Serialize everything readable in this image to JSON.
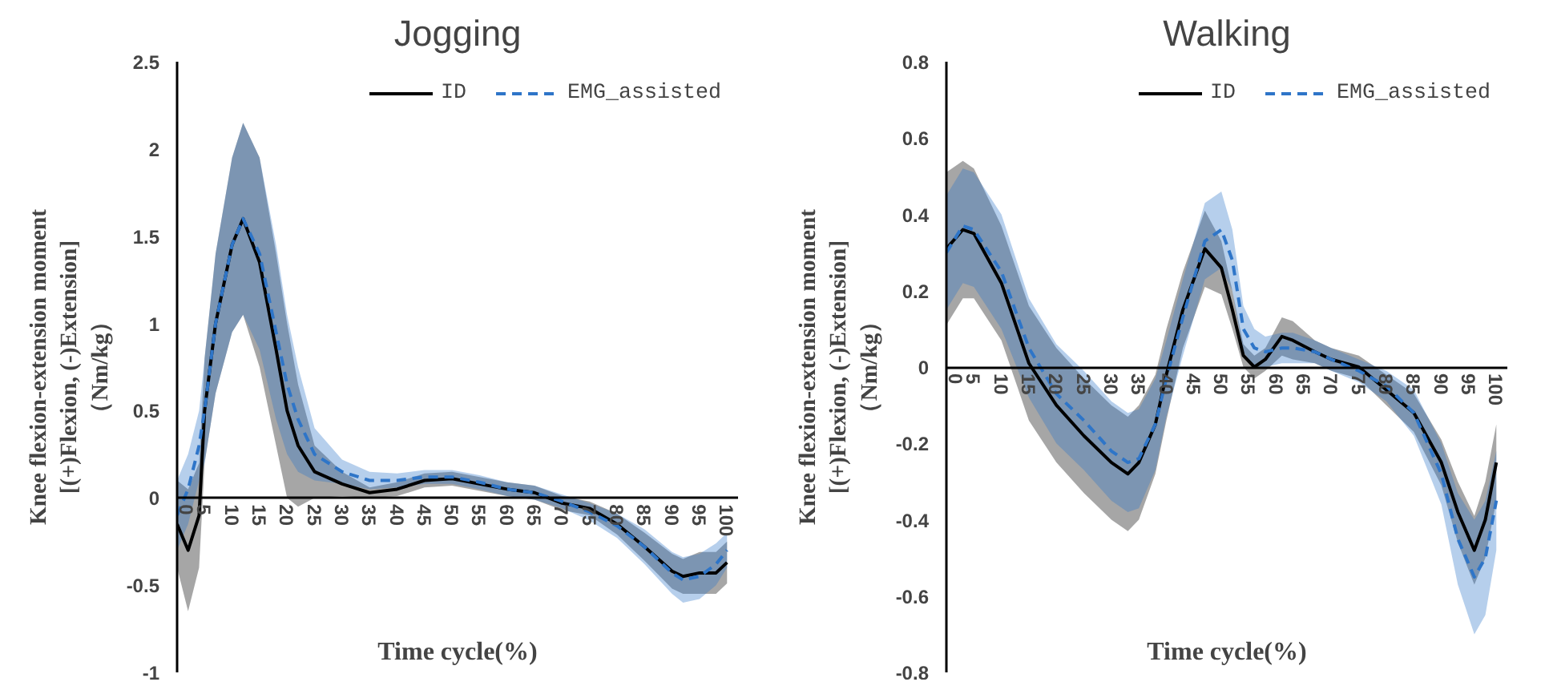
{
  "chart_data": [
    {
      "type": "line",
      "title": "Jogging",
      "xlabel": "Time cycle(%)",
      "ylabel": "Knee flexion-extension moment\n[(+)Flexion, (-)Extension]\n（Nm/kg）",
      "x": [
        0,
        2,
        4,
        5,
        7,
        10,
        12,
        15,
        18,
        20,
        22,
        25,
        30,
        35,
        40,
        45,
        50,
        55,
        60,
        65,
        70,
        75,
        80,
        85,
        90,
        92,
        95,
        98,
        100
      ],
      "series": [
        {
          "name": "ID",
          "color": "#000000",
          "line_style": "solid",
          "values": [
            -0.15,
            -0.3,
            -0.1,
            0.5,
            1.0,
            1.45,
            1.6,
            1.35,
            0.85,
            0.5,
            0.3,
            0.15,
            0.08,
            0.03,
            0.05,
            0.1,
            0.11,
            0.08,
            0.05,
            0.03,
            -0.03,
            -0.06,
            -0.15,
            -0.28,
            -0.42,
            -0.45,
            -0.43,
            -0.43,
            -0.37
          ],
          "lower": [
            -0.4,
            -0.65,
            -0.4,
            0.2,
            0.6,
            0.95,
            1.05,
            0.75,
            0.3,
            0,
            -0.05,
            0,
            0.01,
            0,
            0.01,
            0.06,
            0.07,
            0.04,
            0.01,
            -0.01,
            -0.07,
            -0.1,
            -0.21,
            -0.36,
            -0.52,
            -0.55,
            -0.55,
            -0.55,
            -0.49
          ],
          "upper": [
            0.1,
            0.05,
            0.2,
            0.8,
            1.4,
            1.95,
            2.15,
            1.95,
            1.4,
            1.0,
            0.65,
            0.3,
            0.15,
            0.06,
            0.09,
            0.14,
            0.15,
            0.12,
            0.09,
            0.07,
            0.01,
            -0.02,
            -0.09,
            -0.2,
            -0.32,
            -0.35,
            -0.31,
            -0.31,
            -0.25
          ]
        },
        {
          "name": "EMG_assisted",
          "color": "#2e75c8",
          "line_style": "dashed",
          "values": [
            -0.1,
            0.05,
            0.3,
            0.5,
            1.0,
            1.45,
            1.6,
            1.4,
            0.95,
            0.65,
            0.45,
            0.25,
            0.15,
            0.1,
            0.1,
            0.12,
            0.12,
            0.09,
            0.05,
            0.03,
            -0.02,
            -0.08,
            -0.16,
            -0.28,
            -0.43,
            -0.47,
            -0.45,
            -0.38,
            -0.3
          ],
          "lower": [
            -0.3,
            -0.15,
            0.1,
            0.2,
            0.6,
            0.95,
            1.05,
            0.85,
            0.45,
            0.25,
            0.15,
            0.1,
            0.08,
            0.05,
            0.06,
            0.08,
            0.08,
            0.05,
            0.01,
            -0.01,
            -0.06,
            -0.13,
            -0.23,
            -0.38,
            -0.55,
            -0.6,
            -0.58,
            -0.5,
            -0.4
          ],
          "upper": [
            0.1,
            0.25,
            0.5,
            0.8,
            1.4,
            1.95,
            2.15,
            1.95,
            1.45,
            1.05,
            0.75,
            0.4,
            0.22,
            0.15,
            0.14,
            0.16,
            0.16,
            0.13,
            0.09,
            0.07,
            0.02,
            -0.03,
            -0.09,
            -0.18,
            -0.31,
            -0.34,
            -0.32,
            -0.26,
            -0.2
          ]
        }
      ],
      "xlim": [
        0,
        102
      ],
      "xticks": [
        0,
        5,
        10,
        15,
        20,
        25,
        30,
        35,
        40,
        45,
        50,
        55,
        60,
        65,
        70,
        75,
        80,
        85,
        90,
        95,
        100
      ],
      "ylim": [
        -1,
        2.5
      ],
      "yticks": [
        -1,
        -0.5,
        0,
        0.5,
        1,
        1.5,
        2,
        2.5
      ],
      "grid": false,
      "legend": "top right",
      "marker": "none"
    },
    {
      "type": "line",
      "title": "Walking",
      "xlabel": "Time cycle(%)",
      "ylabel": "Knee flexion-extension moment\n[(+)Flexion, (-)Extension]\n（Nm/kg）",
      "x": [
        0,
        3,
        5,
        10,
        15,
        20,
        25,
        30,
        33,
        35,
        38,
        40,
        43,
        47,
        50,
        52,
        54,
        56,
        58,
        61,
        63,
        67,
        70,
        75,
        80,
        85,
        90,
        93,
        96,
        98,
        100
      ],
      "series": [
        {
          "name": "ID",
          "color": "#000000",
          "line_style": "solid",
          "values": [
            0.31,
            0.36,
            0.35,
            0.22,
            0.01,
            -0.1,
            -0.18,
            -0.25,
            -0.28,
            -0.25,
            -0.15,
            -0.02,
            0.15,
            0.31,
            0.26,
            0.15,
            0.03,
            0.0,
            0.02,
            0.08,
            0.07,
            0.04,
            0.02,
            0.0,
            -0.06,
            -0.12,
            -0.25,
            -0.38,
            -0.48,
            -0.4,
            -0.25
          ],
          "lower": [
            0.11,
            0.18,
            0.18,
            0.07,
            -0.14,
            -0.25,
            -0.33,
            -0.4,
            -0.43,
            -0.4,
            -0.28,
            -0.14,
            0.05,
            0.21,
            0.19,
            0.1,
            0,
            -0.03,
            -0.01,
            0.03,
            0.02,
            0.01,
            -0.01,
            -0.03,
            -0.1,
            -0.17,
            -0.31,
            -0.46,
            -0.57,
            -0.5,
            -0.35
          ],
          "upper": [
            0.51,
            0.54,
            0.52,
            0.37,
            0.16,
            0.05,
            -0.03,
            -0.1,
            -0.13,
            -0.1,
            -0.02,
            0.1,
            0.25,
            0.41,
            0.33,
            0.2,
            0.06,
            0.03,
            0.05,
            0.13,
            0.12,
            0.07,
            0.05,
            0.03,
            -0.02,
            -0.07,
            -0.19,
            -0.3,
            -0.39,
            -0.3,
            -0.15
          ]
        },
        {
          "name": "EMG_assisted",
          "color": "#2e75c8",
          "line_style": "dashed",
          "values": [
            0.3,
            0.37,
            0.36,
            0.25,
            0.05,
            -0.07,
            -0.14,
            -0.22,
            -0.25,
            -0.24,
            -0.15,
            -0.03,
            0.13,
            0.33,
            0.36,
            0.28,
            0.1,
            0.05,
            0.04,
            0.05,
            0.05,
            0.04,
            0.02,
            -0.01,
            -0.05,
            -0.12,
            -0.28,
            -0.45,
            -0.55,
            -0.5,
            -0.35
          ],
          "lower": [
            0.15,
            0.22,
            0.21,
            0.1,
            -0.08,
            -0.2,
            -0.27,
            -0.35,
            -0.38,
            -0.37,
            -0.27,
            -0.13,
            0.03,
            0.23,
            0.26,
            0.2,
            0.04,
            0,
            0,
            0.01,
            0.01,
            0.01,
            -0.01,
            -0.04,
            -0.09,
            -0.18,
            -0.36,
            -0.57,
            -0.7,
            -0.65,
            -0.48
          ],
          "upper": [
            0.45,
            0.52,
            0.51,
            0.4,
            0.18,
            0.06,
            -0.01,
            -0.09,
            -0.12,
            -0.11,
            -0.03,
            0.07,
            0.23,
            0.43,
            0.46,
            0.36,
            0.16,
            0.1,
            0.08,
            0.09,
            0.09,
            0.07,
            0.05,
            0.02,
            -0.01,
            -0.06,
            -0.2,
            -0.33,
            -0.4,
            -0.35,
            -0.22
          ]
        }
      ],
      "xlim": [
        0,
        102
      ],
      "xticks": [
        0,
        5,
        10,
        15,
        20,
        25,
        30,
        35,
        40,
        45,
        50,
        55,
        60,
        65,
        70,
        75,
        80,
        85,
        90,
        95,
        100
      ],
      "ylim": [
        -0.8,
        0.8
      ],
      "yticks": [
        -0.8,
        -0.6,
        -0.4,
        -0.2,
        0,
        0.2,
        0.4,
        0.6,
        0.8
      ],
      "grid": false,
      "legend": "top right",
      "marker": "none"
    }
  ]
}
